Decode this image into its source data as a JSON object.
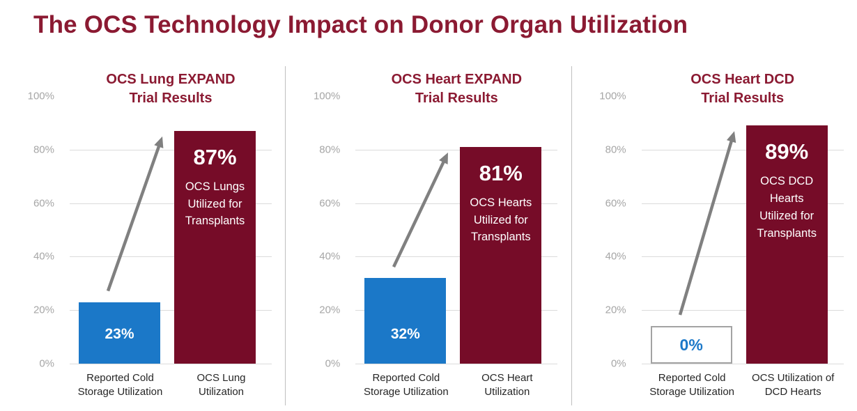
{
  "page_title": "The OCS Technology Impact on Donor Organ Utilization",
  "colors": {
    "title_maroon": "#8B1A32",
    "bar_maroon": "#760C28",
    "bar_blue": "#1B78C8",
    "axis_gray": "#A6A6A6",
    "gridline_gray": "#DBDBDB",
    "arrow_gray": "#808080",
    "divider_gray": "#BFBFBF"
  },
  "chart_data": [
    {
      "type": "bar",
      "title": "OCS Lung EXPAND\nTrial Results",
      "categories": [
        "Reported Cold\nStorage Utilization",
        "OCS Lung\nUtilization"
      ],
      "values": [
        23,
        87
      ],
      "bar_value_labels": [
        "23%",
        "87%"
      ],
      "annotation": "OCS Lungs\nUtilized for\nTransplants",
      "series_colors": [
        "#1B78C8",
        "#760C28"
      ],
      "ylim": [
        0,
        100
      ],
      "yticks": [
        "100%",
        "80%",
        "60%",
        "40%",
        "20%",
        "0%"
      ],
      "grid": true,
      "legend": "none"
    },
    {
      "type": "bar",
      "title": "OCS Heart EXPAND\nTrial Results",
      "categories": [
        "Reported Cold\nStorage Utilization",
        "OCS Heart\nUtilization"
      ],
      "values": [
        32,
        81
      ],
      "bar_value_labels": [
        "32%",
        "81%"
      ],
      "annotation": "OCS Hearts\nUtilized for\nTransplants",
      "series_colors": [
        "#1B78C8",
        "#760C28"
      ],
      "ylim": [
        0,
        100
      ],
      "yticks": [
        "100%",
        "80%",
        "60%",
        "40%",
        "20%",
        "0%"
      ],
      "grid": true,
      "legend": "none"
    },
    {
      "type": "bar",
      "title": "OCS Heart DCD\nTrial Results",
      "categories": [
        "Reported Cold\nStorage Utilization",
        "OCS Utilization of\nDCD Hearts"
      ],
      "values": [
        0,
        89
      ],
      "bar_value_labels": [
        "0%",
        "89%"
      ],
      "annotation": "OCS DCD\nHearts\nUtilized for\nTransplants",
      "series_colors": [
        "#FFFFFF",
        "#760C28"
      ],
      "ylim": [
        0,
        100
      ],
      "yticks": [
        "100%",
        "80%",
        "60%",
        "40%",
        "20%",
        "0%"
      ],
      "grid": true,
      "legend": "none"
    }
  ]
}
